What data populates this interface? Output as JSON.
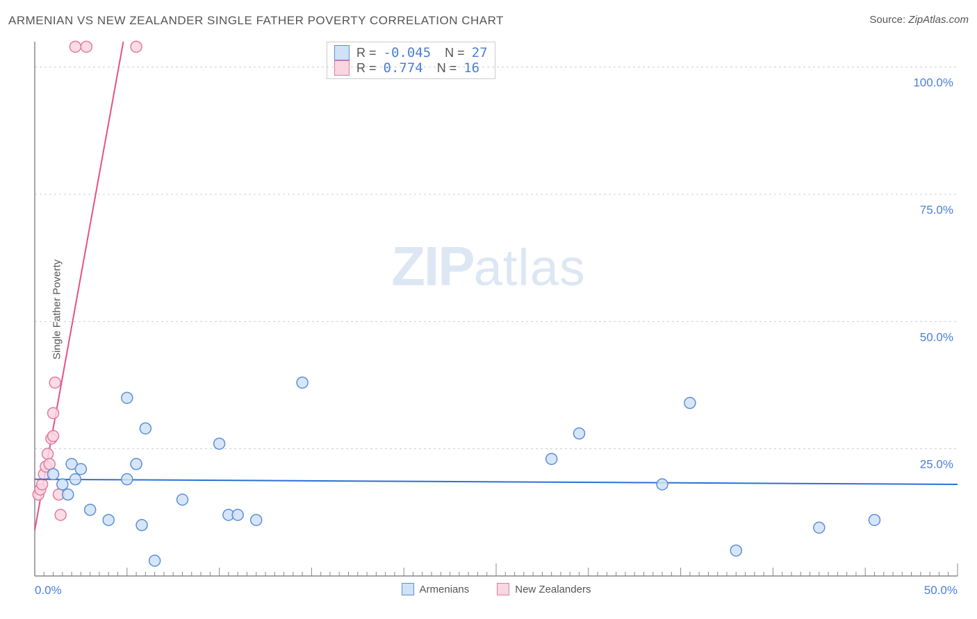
{
  "chart": {
    "title": "ARMENIAN VS NEW ZEALANDER SINGLE FATHER POVERTY CORRELATION CHART",
    "source_label": "Source:",
    "source_value": "ZipAtlas.com",
    "y_axis_label": "Single Father Poverty",
    "watermark_zip": "ZIP",
    "watermark_atlas": "atlas",
    "type": "scatter",
    "background_color": "#ffffff",
    "grid_color": "#cccccc",
    "axis_color": "#888888",
    "tick_length": 8,
    "xlim": [
      0,
      50
    ],
    "ylim": [
      0,
      105
    ],
    "xtick_step": 25,
    "ytick_step": 25,
    "x_tick_labels": [
      "0.0%",
      "50.0%"
    ],
    "x_tick_positions": [
      0,
      50
    ],
    "y_tick_labels": [
      "25.0%",
      "50.0%",
      "75.0%",
      "100.0%"
    ],
    "y_tick_positions": [
      25,
      50,
      75,
      100
    ],
    "y_label_color": "#4a7fd8",
    "marker_radius": 8,
    "marker_stroke_width": 1.5,
    "series": [
      {
        "name": "Armenians",
        "fill": "#cfe2f7",
        "stroke": "#5b8fd6",
        "R_label": "R =",
        "R_value": "-0.045",
        "N_label": "N =",
        "N_value": "27",
        "trend": {
          "x1": 0,
          "y1": 19,
          "x2": 50,
          "y2": 18,
          "color": "#2b6fd6",
          "width": 2
        },
        "points": [
          [
            1.0,
            20
          ],
          [
            1.5,
            18
          ],
          [
            1.8,
            16
          ],
          [
            2.0,
            22
          ],
          [
            2.2,
            19
          ],
          [
            2.5,
            21
          ],
          [
            3.0,
            13
          ],
          [
            4.0,
            11
          ],
          [
            5.0,
            19
          ],
          [
            5.0,
            35
          ],
          [
            5.5,
            22
          ],
          [
            5.8,
            10
          ],
          [
            6.0,
            29
          ],
          [
            6.5,
            3
          ],
          [
            8.0,
            15
          ],
          [
            10.0,
            26
          ],
          [
            10.5,
            12
          ],
          [
            11.0,
            12
          ],
          [
            12.0,
            11
          ],
          [
            14.5,
            38
          ],
          [
            28.0,
            23
          ],
          [
            29.5,
            28
          ],
          [
            34.0,
            18
          ],
          [
            35.5,
            34
          ],
          [
            38.0,
            5
          ],
          [
            42.5,
            9.5
          ],
          [
            45.5,
            11
          ]
        ]
      },
      {
        "name": "New Zealanders",
        "fill": "#f9d6e0",
        "stroke": "#e37aa0",
        "R_label": "R =",
        "R_value": " 0.774",
        "N_label": "N =",
        "N_value": "16",
        "trend": {
          "x1": 0,
          "y1": 9,
          "x2": 4.8,
          "y2": 105,
          "color": "#e84f8a",
          "width": 2
        },
        "points": [
          [
            0.2,
            16
          ],
          [
            0.3,
            17
          ],
          [
            0.4,
            18
          ],
          [
            0.5,
            20
          ],
          [
            0.6,
            21.5
          ],
          [
            0.7,
            24
          ],
          [
            0.8,
            22
          ],
          [
            0.9,
            27
          ],
          [
            1.0,
            27.5
          ],
          [
            1.0,
            32
          ],
          [
            1.1,
            38
          ],
          [
            1.3,
            16
          ],
          [
            1.4,
            12
          ],
          [
            2.2,
            104
          ],
          [
            2.8,
            104
          ],
          [
            5.5,
            104
          ]
        ]
      }
    ]
  }
}
